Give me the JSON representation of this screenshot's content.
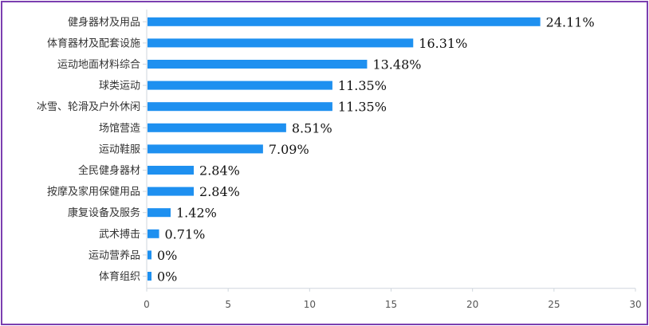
{
  "chart_data": {
    "type": "bar",
    "orientation": "horizontal",
    "categories": [
      "健身器材及用品",
      "体育器材及配套设施",
      "运动地面材料综合",
      "球类运动",
      "冰雪、轮滑及户外休闲",
      "场馆营造",
      "运动鞋服",
      "全民健身器材",
      "按摩及家用保健用品",
      "康复设备及服务",
      "武术搏击",
      "运动营养品",
      "体育组织"
    ],
    "values": [
      24.11,
      16.31,
      13.48,
      11.35,
      11.35,
      8.51,
      7.09,
      2.84,
      2.84,
      1.42,
      0.71,
      0,
      0
    ],
    "value_labels": [
      "24.11%",
      "16.31%",
      "13.48%",
      "11.35%",
      "11.35%",
      "8.51%",
      "7.09%",
      "2.84%",
      "2.84%",
      "1.42%",
      "0.71%",
      "0%",
      "0%"
    ],
    "xticks": [
      "0",
      "5",
      "10",
      "15",
      "20",
      "25",
      "30"
    ],
    "xlim": [
      0,
      30
    ],
    "bar_color": "#1e90f0",
    "grid": false,
    "legend": "none",
    "title": "",
    "xlabel": "",
    "ylabel": ""
  }
}
